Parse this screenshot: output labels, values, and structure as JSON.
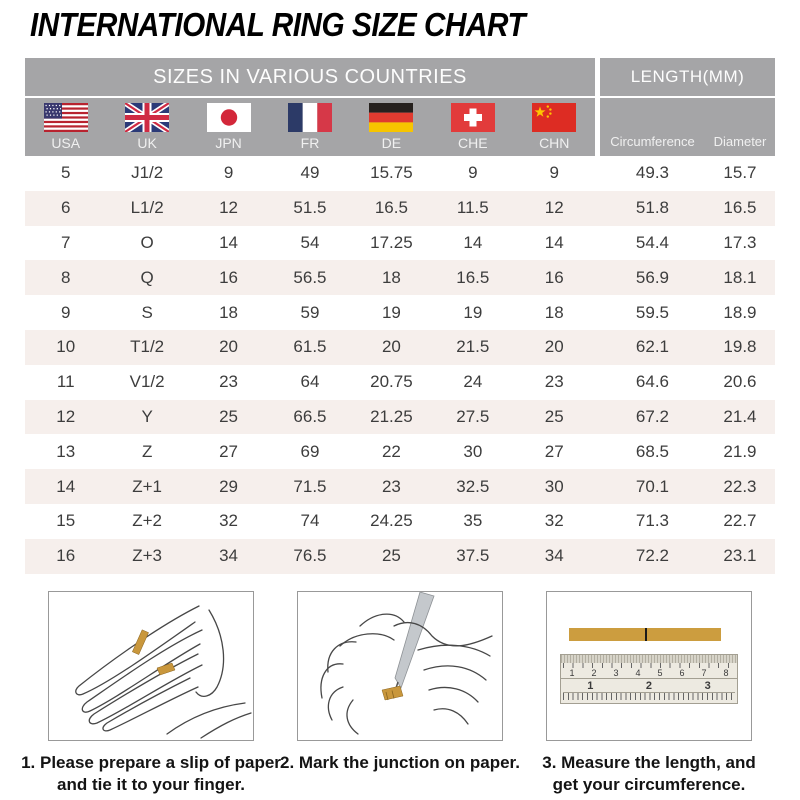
{
  "title": "INTERNATIONAL RING SIZE CHART",
  "table": {
    "group_headers": {
      "sizes": "SIZES IN VARIOUS COUNTRIES",
      "length": "LENGTH(MM)"
    },
    "country_columns": [
      {
        "code": "USA",
        "flag": "usa-flag-icon"
      },
      {
        "code": "UK",
        "flag": "uk-flag-icon"
      },
      {
        "code": "JPN",
        "flag": "japan-flag-icon"
      },
      {
        "code": "FR",
        "flag": "france-flag-icon"
      },
      {
        "code": "DE",
        "flag": "germany-flag-icon"
      },
      {
        "code": "CHE",
        "flag": "switzerland-flag-icon"
      },
      {
        "code": "CHN",
        "flag": "china-flag-icon"
      }
    ],
    "length_columns": {
      "circumference": "Circumference",
      "diameter": "Diameter"
    },
    "rows": [
      [
        "5",
        "J1/2",
        "9",
        "49",
        "15.75",
        "9",
        "9",
        "49.3",
        "15.7"
      ],
      [
        "6",
        "L1/2",
        "12",
        "51.5",
        "16.5",
        "11.5",
        "12",
        "51.8",
        "16.5"
      ],
      [
        "7",
        "O",
        "14",
        "54",
        "17.25",
        "14",
        "14",
        "54.4",
        "17.3"
      ],
      [
        "8",
        "Q",
        "16",
        "56.5",
        "18",
        "16.5",
        "16",
        "56.9",
        "18.1"
      ],
      [
        "9",
        "S",
        "18",
        "59",
        "19",
        "19",
        "18",
        "59.5",
        "18.9"
      ],
      [
        "10",
        "T1/2",
        "20",
        "61.5",
        "20",
        "21.5",
        "20",
        "62.1",
        "19.8"
      ],
      [
        "11",
        "V1/2",
        "23",
        "64",
        "20.75",
        "24",
        "23",
        "64.6",
        "20.6"
      ],
      [
        "12",
        "Y",
        "25",
        "66.5",
        "21.25",
        "27.5",
        "25",
        "67.2",
        "21.4"
      ],
      [
        "13",
        "Z",
        "27",
        "69",
        "22",
        "30",
        "27",
        "68.5",
        "21.9"
      ],
      [
        "14",
        "Z+1",
        "29",
        "71.5",
        "23",
        "32.5",
        "30",
        "70.1",
        "22.3"
      ],
      [
        "15",
        "Z+2",
        "32",
        "74",
        "24.25",
        "35",
        "32",
        "71.3",
        "22.7"
      ],
      [
        "16",
        "Z+3",
        "34",
        "76.5",
        "25",
        "37.5",
        "34",
        "72.2",
        "23.1"
      ]
    ]
  },
  "instructions": {
    "items": [
      {
        "illustration": "hand-with-paper-strip",
        "lines": [
          "1. Please prepare a slip of paper",
          "and tie it to your finger."
        ]
      },
      {
        "illustration": "marking-junction-on-paper",
        "lines": [
          "2. Mark the junction on paper."
        ]
      },
      {
        "illustration": "ruler-measuring-strip",
        "lines": [
          "3. Measure the length, and",
          "get your circumference."
        ]
      }
    ],
    "ruler": {
      "cm_numbers": [
        "1",
        "2",
        "3",
        "4",
        "5",
        "6",
        "7",
        "8"
      ],
      "inch_numbers": [
        "1",
        "2",
        "3"
      ]
    }
  },
  "colors": {
    "header_gray": "#a5a5a7",
    "header_text": "#fdfdfd",
    "row_alt": "#f6efec",
    "data_text": "#3d3d3d",
    "paper_strip_gold": "#cc9d3f"
  }
}
